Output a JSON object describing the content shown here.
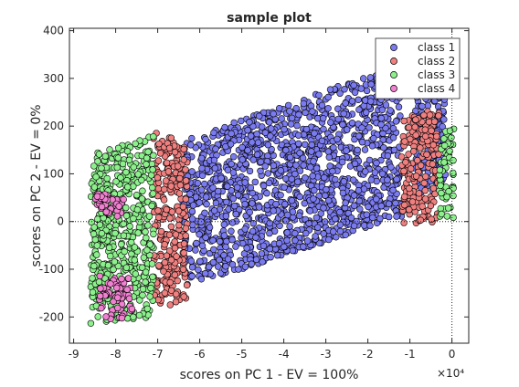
{
  "chart_data": {
    "type": "scatter",
    "title": "sample plot",
    "xlabel": "scores on PC 1 - EV = 100%",
    "ylabel": "scores on PC 2 - EV = 0%",
    "x_exponent_label": "×10⁴",
    "xlim": [
      -9.1,
      0.4
    ],
    "ylim": [
      -255,
      405
    ],
    "x_ticks": [
      -9,
      -8,
      -7,
      -6,
      -5,
      -4,
      -3,
      -2,
      -1,
      0
    ],
    "y_ticks": [
      -200,
      -100,
      0,
      100,
      200,
      300,
      400
    ],
    "x_tick_labels": [
      "-9",
      "-8",
      "-7",
      "-6",
      "-5",
      "-4",
      "-3",
      "-2",
      "-1",
      "0"
    ],
    "y_tick_labels": [
      "-200",
      "-100",
      "0",
      "100",
      "200",
      "300",
      "400"
    ],
    "reference_lines": {
      "x": 0,
      "y": 0,
      "style": "dotted"
    },
    "legend_position": "top-right",
    "series": [
      {
        "name": "class 1",
        "color": "#7b7bf0",
        "regions": [
          {
            "x": [
              -6.4,
              -1.2
            ],
            "y_bottom_at_xmin": -140,
            "y_bottom_at_xmax": 10,
            "y_top_at_xmin": 170,
            "y_top_at_xmax": 330
          },
          {
            "x": [
              -0.9,
              -0.15
            ],
            "y_bottom_at_xmin": 40,
            "y_bottom_at_xmax": 80,
            "y_top_at_xmin": 300,
            "y_top_at_xmax": 310
          }
        ]
      },
      {
        "name": "class 2",
        "color": "#f08080",
        "regions": [
          {
            "x": [
              -7.1,
              -6.3
            ],
            "y_bottom_at_xmin": -190,
            "y_bottom_at_xmax": -160,
            "y_top_at_xmin": 190,
            "y_top_at_xmax": 170
          },
          {
            "x": [
              -1.2,
              -0.3
            ],
            "y_bottom_at_xmin": -10,
            "y_bottom_at_xmax": 0,
            "y_top_at_xmin": 220,
            "y_top_at_xmax": 240
          }
        ]
      },
      {
        "name": "class 3",
        "color": "#8cf08c",
        "regions": [
          {
            "x": [
              -8.6,
              -7.1
            ],
            "y_bottom_at_xmin": -220,
            "y_bottom_at_xmax": -200,
            "y_top_at_xmin": 140,
            "y_top_at_xmax": 180
          },
          {
            "x": [
              -0.3,
              0.05
            ],
            "y_bottom_at_xmin": 0,
            "y_bottom_at_xmax": 0,
            "y_top_at_xmin": 180,
            "y_top_at_xmax": 230
          }
        ]
      },
      {
        "name": "class 4",
        "color": "#f080d0",
        "regions": [
          {
            "x": [
              -8.4,
              -7.6
            ],
            "y_bottom_at_xmin": -210,
            "y_bottom_at_xmax": -200,
            "y_top_at_xmin": -110,
            "y_top_at_xmax": -120
          },
          {
            "x": [
              -8.5,
              -7.8
            ],
            "y_bottom_at_xmin": 10,
            "y_bottom_at_xmax": 10,
            "y_top_at_xmin": 60,
            "y_top_at_xmax": 60
          }
        ]
      }
    ]
  }
}
